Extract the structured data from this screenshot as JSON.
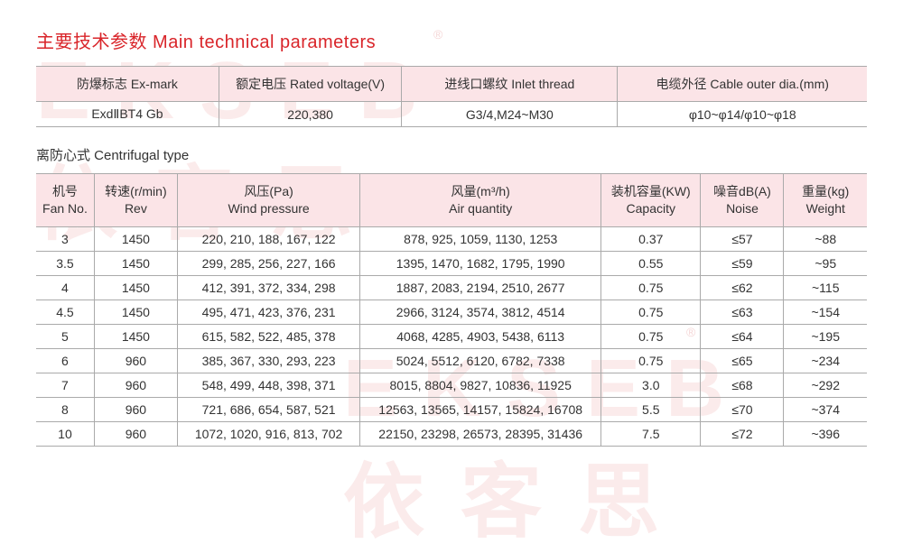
{
  "colors": {
    "title": "#d9252a",
    "header_bg": "#fbe4e7",
    "text": "#333333",
    "border": "#aaaaaa",
    "watermark": "#fbebeb",
    "watermark_reg": "#f5d6d6",
    "background": "#ffffff"
  },
  "watermark_text": "EKSEB",
  "watermark_sub": "依客思",
  "reg_symbol": "®",
  "title": "主要技术参数  Main technical parameters",
  "table1": {
    "headers": [
      "防爆标志 Ex-mark",
      "额定电压 Rated voltage(V)",
      "进线口螺纹 Inlet thread",
      "电缆外径 Cable outer dia.(mm)"
    ],
    "row": [
      "ExdⅡBT4 Gb",
      "220,380",
      "G3/4,M24~M30",
      "φ10~φ14/φ10~φ18"
    ],
    "col_widths": [
      "22%",
      "22%",
      "26%",
      "30%"
    ]
  },
  "subtitle": "离防心式  Centrifugal type",
  "table2": {
    "headers": [
      {
        "cn": "机号",
        "en": "Fan No."
      },
      {
        "cn": "转速(r/min)",
        "en": "Rev"
      },
      {
        "cn": "风压(Pa)",
        "en": "Wind pressure"
      },
      {
        "cn": "风量(m³/h)",
        "en": "Air quantity"
      },
      {
        "cn": "装机容量(KW)",
        "en": "Capacity"
      },
      {
        "cn": "噪音dB(A)",
        "en": "Noise"
      },
      {
        "cn": "重量(kg)",
        "en": "Weight"
      }
    ],
    "col_widths": [
      "7%",
      "10%",
      "22%",
      "29%",
      "12%",
      "10%",
      "10%"
    ],
    "rows": [
      [
        "3",
        "1450",
        "220, 210, 188, 167, 122",
        "878, 925, 1059, 1130, 1253",
        "0.37",
        "≤57",
        "~88"
      ],
      [
        "3.5",
        "1450",
        "299, 285, 256, 227, 166",
        "1395, 1470, 1682, 1795, 1990",
        "0.55",
        "≤59",
        "~95"
      ],
      [
        "4",
        "1450",
        "412, 391, 372, 334, 298",
        "1887, 2083, 2194, 2510, 2677",
        "0.75",
        "≤62",
        "~115"
      ],
      [
        "4.5",
        "1450",
        "495, 471, 423, 376, 231",
        "2966, 3124, 3574, 3812, 4514",
        "0.75",
        "≤63",
        "~154"
      ],
      [
        "5",
        "1450",
        "615, 582, 522, 485, 378",
        "4068, 4285, 4903, 5438, 6113",
        "0.75",
        "≤64",
        "~195"
      ],
      [
        "6",
        "960",
        "385, 367, 330, 293, 223",
        "5024, 5512, 6120, 6782, 7338",
        "0.75",
        "≤65",
        "~234"
      ],
      [
        "7",
        "960",
        "548, 499, 448, 398, 371",
        "8015, 8804, 9827, 10836, 11925",
        "3.0",
        "≤68",
        "~292"
      ],
      [
        "8",
        "960",
        "721, 686, 654, 587, 521",
        "12563, 13565, 14157, 15824, 16708",
        "5.5",
        "≤70",
        "~374"
      ],
      [
        "10",
        "960",
        "1072, 1020, 916, 813, 702",
        "22150, 23298, 26573, 28395, 31436",
        "7.5",
        "≤72",
        "~396"
      ]
    ]
  }
}
